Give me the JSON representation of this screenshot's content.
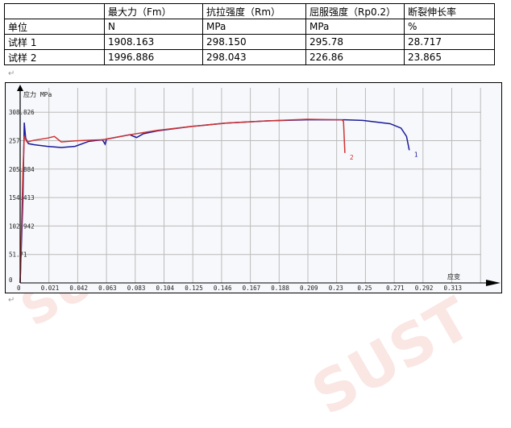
{
  "table": {
    "header": [
      "",
      "最大力（Fm）",
      "抗拉强度（Rm）",
      "屈服强度（Rp0.2）",
      "断裂伸长率"
    ],
    "rows": [
      [
        "单位",
        "N",
        "MPa",
        "MPa",
        "%"
      ],
      [
        "试样 1",
        "1908.163",
        "298.150",
        "295.78",
        "28.717"
      ],
      [
        "试样 2",
        "1996.886",
        "298.043",
        "226.86",
        "23.865"
      ]
    ]
  },
  "watermark": "SUST",
  "chart_data": {
    "type": "line",
    "ylabel": "应力 MPa",
    "xlabel": "应变",
    "xlim": [
      0,
      0.334
    ],
    "ylim": [
      0,
      340
    ],
    "grid": true,
    "xticks": [
      "0",
      "0.021",
      "0.042",
      "0.063",
      "0.083",
      "0.104",
      "0.125",
      "0.146",
      "0.167",
      "0.188",
      "0.209",
      "0.23",
      "0.25",
      "0.271",
      "0.292",
      "0.313"
    ],
    "yticks": [
      "0",
      "51.71",
      "102.942",
      "154.413",
      "205.884",
      "257",
      "308.826"
    ],
    "series": [
      {
        "name": "1",
        "color": "#1a1a9a",
        "points": [
          [
            0,
            0
          ],
          [
            0.002,
            150
          ],
          [
            0.003,
            290
          ],
          [
            0.004,
            262
          ],
          [
            0.006,
            252
          ],
          [
            0.01,
            250
          ],
          [
            0.02,
            247
          ],
          [
            0.03,
            245
          ],
          [
            0.04,
            247
          ],
          [
            0.05,
            256
          ],
          [
            0.06,
            259
          ],
          [
            0.062,
            251
          ],
          [
            0.063,
            260
          ],
          [
            0.08,
            268
          ],
          [
            0.085,
            263
          ],
          [
            0.09,
            270
          ],
          [
            0.1,
            275
          ],
          [
            0.125,
            283
          ],
          [
            0.15,
            289
          ],
          [
            0.18,
            293
          ],
          [
            0.209,
            295
          ],
          [
            0.237,
            295
          ],
          [
            0.25,
            294
          ],
          [
            0.27,
            288
          ],
          [
            0.278,
            280
          ],
          [
            0.282,
            265
          ],
          [
            0.284,
            240
          ]
        ]
      },
      {
        "name": "2",
        "color": "#cc3333",
        "points": [
          [
            0,
            0
          ],
          [
            0.002,
            200
          ],
          [
            0.003,
            265
          ],
          [
            0.005,
            255
          ],
          [
            0.01,
            258
          ],
          [
            0.02,
            262
          ],
          [
            0.025,
            265
          ],
          [
            0.03,
            255
          ],
          [
            0.04,
            257
          ],
          [
            0.05,
            258
          ],
          [
            0.06,
            259
          ],
          [
            0.08,
            268
          ],
          [
            0.1,
            276
          ],
          [
            0.125,
            283
          ],
          [
            0.15,
            289
          ],
          [
            0.18,
            293
          ],
          [
            0.209,
            296
          ],
          [
            0.235,
            295
          ],
          [
            0.236,
            292
          ],
          [
            0.237,
            235
          ]
        ]
      }
    ]
  }
}
